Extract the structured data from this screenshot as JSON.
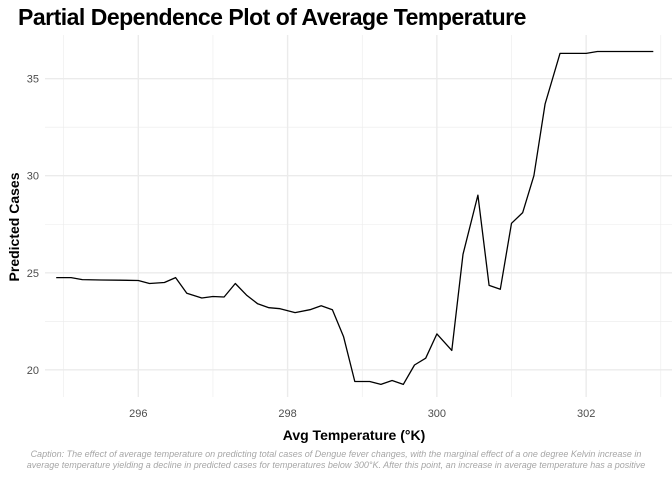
{
  "chart_data": {
    "type": "line",
    "title": "Partial Dependence Plot of Average Temperature",
    "xlabel": "Avg Temperature (°K)",
    "ylabel": "Predicted Cases",
    "xlim": [
      294.75,
      303.15
    ],
    "ylim": [
      18.6,
      37.25
    ],
    "x_ticks": [
      296,
      298,
      300,
      302
    ],
    "y_ticks": [
      20,
      25,
      30,
      35
    ],
    "grid": true,
    "line_color": "#000000",
    "grid_color": "#ebebeb",
    "series": [
      {
        "x": [
          294.9,
          295.1,
          295.25,
          295.5,
          295.75,
          296.0,
          296.15,
          296.35,
          296.5,
          296.65,
          296.85,
          297.0,
          297.15,
          297.3,
          297.45,
          297.6,
          297.75,
          297.9,
          298.1,
          298.3,
          298.45,
          298.6,
          298.75,
          298.9,
          299.1,
          299.25,
          299.4,
          299.55,
          299.7,
          299.85,
          300.0,
          300.2,
          300.35,
          300.55,
          300.7,
          300.85,
          301.0,
          301.15,
          301.3,
          301.45,
          301.65,
          301.85,
          302.0,
          302.15,
          302.35,
          302.9
        ],
        "y": [
          24.75,
          24.75,
          24.65,
          24.63,
          24.62,
          24.6,
          24.45,
          24.5,
          24.75,
          23.95,
          23.7,
          23.78,
          23.75,
          24.45,
          23.85,
          23.4,
          23.2,
          23.15,
          22.95,
          23.1,
          23.3,
          23.1,
          21.7,
          19.4,
          19.4,
          19.25,
          19.45,
          19.25,
          20.25,
          20.6,
          21.85,
          21.0,
          25.95,
          29.0,
          24.35,
          24.15,
          27.55,
          28.1,
          30.0,
          33.7,
          36.3,
          36.3,
          36.3,
          36.4,
          36.4,
          36.4
        ]
      }
    ]
  },
  "caption": {
    "line1": "Caption: The effect of average temperature on predicting total cases of Dengue fever changes, with the marginal effect of a one degree Kelvin increase in",
    "line2": "average temperature yielding a decline in predicted cases for temperatures below 300°K. After this point, an increase in average temperature has a positive"
  }
}
